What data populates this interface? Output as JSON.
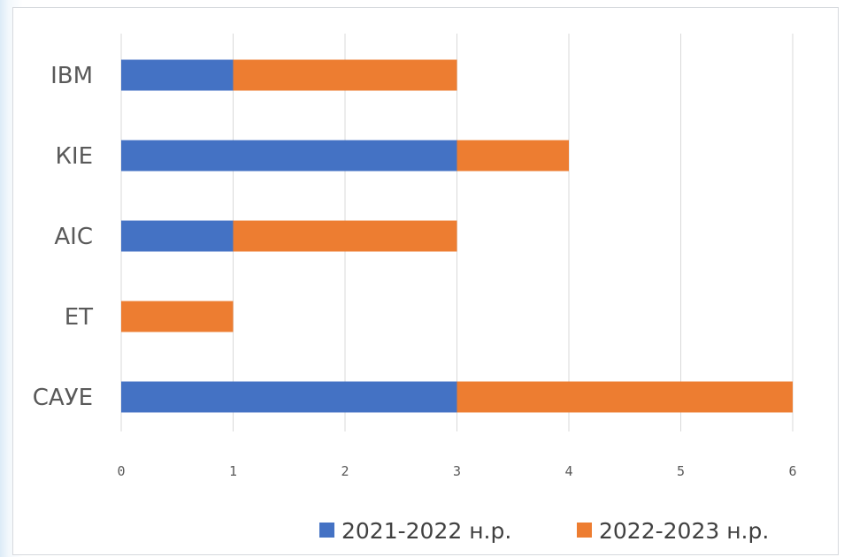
{
  "chart_data": {
    "type": "bar",
    "orientation": "horizontal",
    "stacked": true,
    "categories": [
      "IBM",
      "КІЕ",
      "АІС",
      "ЕТ",
      "САУЕ"
    ],
    "series": [
      {
        "name": "2021-2022 н.р.",
        "color": "#4472c4",
        "values": [
          1,
          3,
          1,
          0,
          3
        ]
      },
      {
        "name": "2022-2023 н.р.",
        "color": "#ed7d31",
        "values": [
          2,
          1,
          2,
          1,
          3
        ]
      }
    ],
    "xticks": [
      "0",
      "1",
      "2",
      "3",
      "4",
      "5",
      "6"
    ],
    "xlim": [
      0,
      6
    ],
    "grid": true,
    "legend_position": "bottom-right"
  }
}
